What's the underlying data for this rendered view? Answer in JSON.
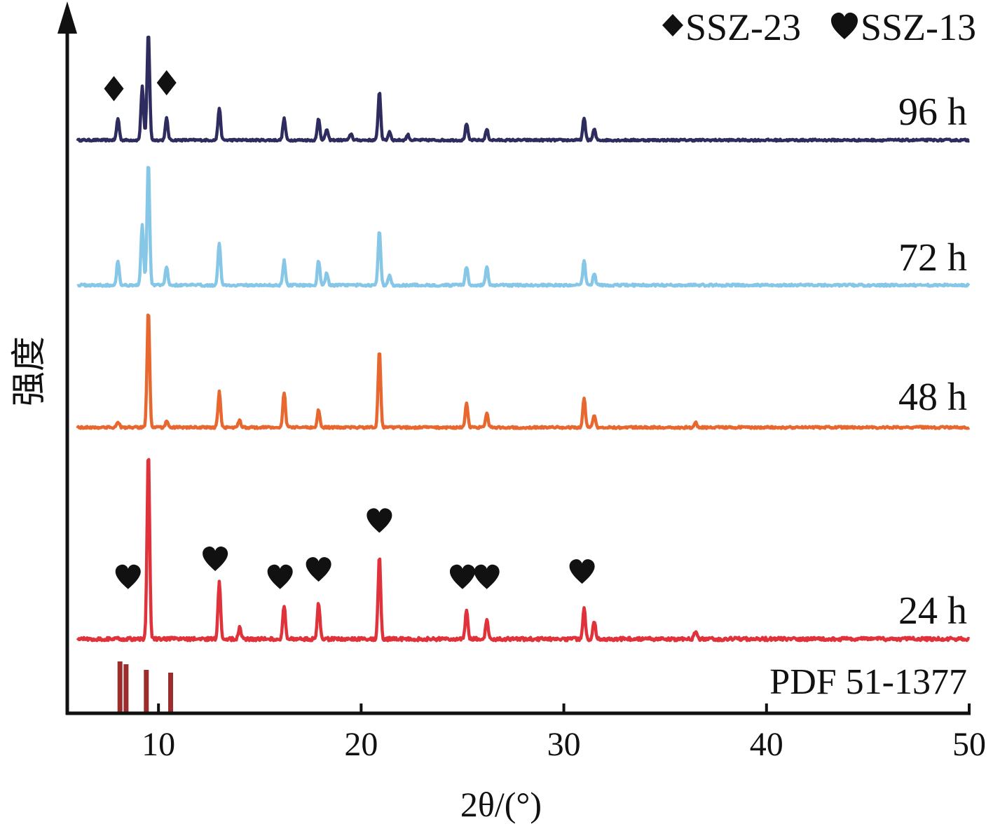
{
  "chart_data": {
    "type": "line",
    "xlabel": "2θ/(°)",
    "ylabel": "强度",
    "xlim": [
      5.5,
      50
    ],
    "xticks": [
      10,
      20,
      30,
      40,
      50
    ],
    "grid": false,
    "legend": {
      "placement": "top-right",
      "entries": [
        {
          "marker": "diamond",
          "label": "SSZ-23"
        },
        {
          "marker": "heart",
          "label": "SSZ-13"
        }
      ]
    },
    "series": [
      {
        "name": "96 h",
        "color": "#2e2c5e",
        "peaks": [
          [
            8.0,
            0.2
          ],
          [
            9.2,
            0.5
          ],
          [
            9.5,
            1.0
          ],
          [
            10.4,
            0.2
          ],
          [
            13.0,
            0.3
          ],
          [
            16.2,
            0.2
          ],
          [
            17.9,
            0.2
          ],
          [
            18.3,
            0.1
          ],
          [
            19.5,
            0.06
          ],
          [
            20.9,
            0.45
          ],
          [
            21.4,
            0.08
          ],
          [
            22.3,
            0.05
          ],
          [
            25.2,
            0.15
          ],
          [
            26.2,
            0.1
          ],
          [
            31.0,
            0.2
          ],
          [
            31.5,
            0.1
          ]
        ],
        "markers": [
          {
            "type": "diamond",
            "x": 7.8
          },
          {
            "type": "diamond",
            "x": 10.4
          }
        ]
      },
      {
        "name": "72 h",
        "color": "#86c6e6",
        "peaks": [
          [
            8.0,
            0.2
          ],
          [
            9.2,
            0.5
          ],
          [
            9.5,
            1.0
          ],
          [
            10.4,
            0.15
          ],
          [
            13.0,
            0.35
          ],
          [
            16.2,
            0.2
          ],
          [
            17.9,
            0.2
          ],
          [
            18.3,
            0.1
          ],
          [
            20.9,
            0.45
          ],
          [
            21.4,
            0.08
          ],
          [
            25.2,
            0.15
          ],
          [
            26.2,
            0.15
          ],
          [
            31.0,
            0.2
          ],
          [
            31.5,
            0.1
          ]
        ],
        "markers": []
      },
      {
        "name": "48 h",
        "color": "#e8672e",
        "peaks": [
          [
            8.0,
            0.05
          ],
          [
            9.5,
            1.0
          ],
          [
            10.4,
            0.05
          ],
          [
            13.0,
            0.3
          ],
          [
            14.0,
            0.06
          ],
          [
            16.2,
            0.3
          ],
          [
            17.9,
            0.15
          ],
          [
            20.9,
            0.65
          ],
          [
            25.2,
            0.2
          ],
          [
            26.2,
            0.12
          ],
          [
            31.0,
            0.25
          ],
          [
            31.5,
            0.1
          ],
          [
            36.5,
            0.04
          ]
        ],
        "markers": []
      },
      {
        "name": "24 h",
        "color": "#e0323a",
        "peaks": [
          [
            9.5,
            1.0
          ],
          [
            13.0,
            0.3
          ],
          [
            14.0,
            0.06
          ],
          [
            16.2,
            0.18
          ],
          [
            17.9,
            0.19
          ],
          [
            20.9,
            0.45
          ],
          [
            25.2,
            0.15
          ],
          [
            26.2,
            0.1
          ],
          [
            31.0,
            0.17
          ],
          [
            31.5,
            0.1
          ],
          [
            36.5,
            0.04
          ]
        ],
        "markers": [
          {
            "type": "heart",
            "x": 8.5
          },
          {
            "type": "heart",
            "x": 12.8
          },
          {
            "type": "heart",
            "x": 16.0
          },
          {
            "type": "heart",
            "x": 17.9
          },
          {
            "type": "heart",
            "x": 20.9
          },
          {
            "type": "heart",
            "x": 25.0
          },
          {
            "type": "heart",
            "x": 26.2
          },
          {
            "type": "heart",
            "x": 30.9
          }
        ]
      }
    ],
    "reference": {
      "label": "PDF 51-1377",
      "color": "#9b2d2d",
      "lines": [
        [
          8.1,
          0.9
        ],
        [
          8.4,
          0.85
        ],
        [
          9.4,
          0.75
        ],
        [
          10.6,
          0.7
        ]
      ]
    }
  }
}
